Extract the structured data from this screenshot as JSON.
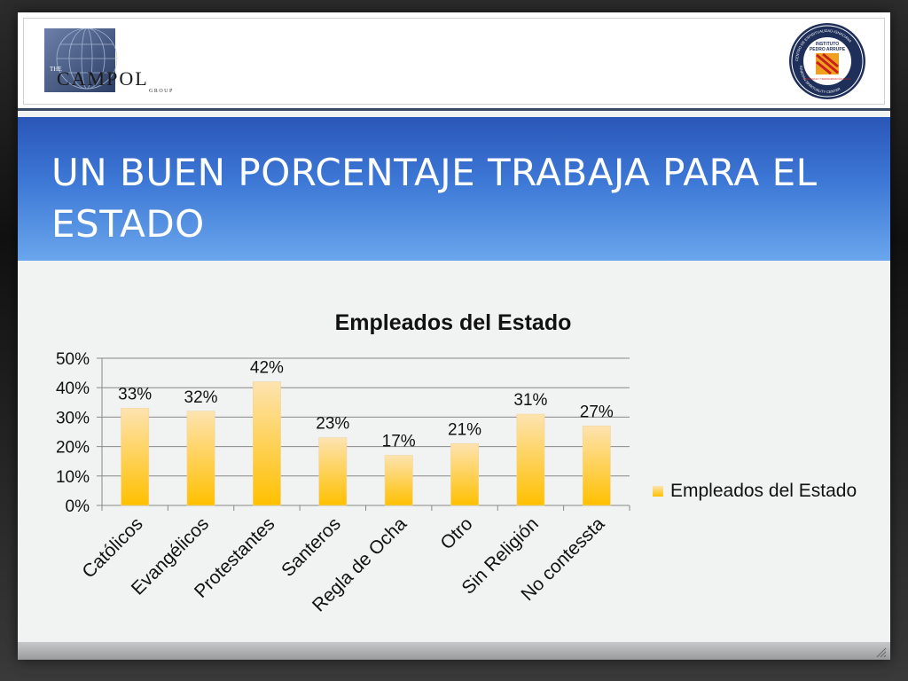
{
  "header": {
    "left_logo": {
      "main": "CAMPOL",
      "top": "THE",
      "bottom": "GROUP"
    },
    "right_logo": {
      "line1": "INSTITUTO",
      "line2": "PEDRO ARRUPE",
      "ring_top": "CENTRO DE ESPIRITUALIDAD IGNACIANA",
      "ring_bottom": "IGNATIAN SPIRITUALITY CENTER",
      "inner": "CONCIENCIA Y TRANSFORMACIÓN SOCIAL"
    }
  },
  "slide": {
    "title": "UN BUEN PORCENTAJE TRABAJA PARA EL ESTADO"
  },
  "colors": {
    "bar_top": "#fde3b0",
    "bar_bottom": "#ffc000",
    "title_band": "#3d78d6"
  },
  "chart_data": {
    "type": "bar",
    "title": "Empleados del Estado",
    "categories": [
      "Católicos",
      "Evangélicos",
      "Protestantes",
      "Santeros",
      "Regla de Ocha",
      "Otro",
      "Sin Religión",
      "No contessta"
    ],
    "series": [
      {
        "name": "Empleados del Estado",
        "values": [
          0.33,
          0.32,
          0.42,
          0.23,
          0.17,
          0.21,
          0.31,
          0.27
        ]
      }
    ],
    "data_labels": [
      "33%",
      "32%",
      "42%",
      "23%",
      "17%",
      "21%",
      "31%",
      "27%"
    ],
    "y_ticks": [
      "0%",
      "10%",
      "20%",
      "30%",
      "40%",
      "50%"
    ],
    "ylim": [
      0,
      0.5
    ],
    "grid": true,
    "legend": "right"
  }
}
